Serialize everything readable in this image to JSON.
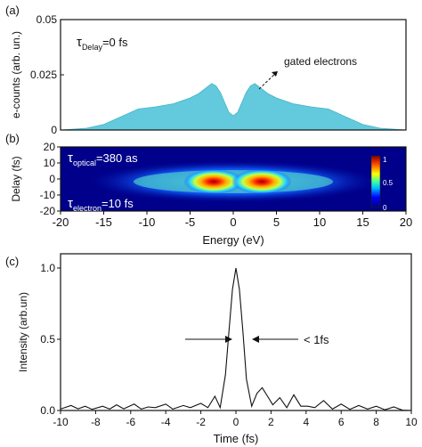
{
  "panel_labels": [
    "(a)",
    "(b)",
    "(c)"
  ],
  "colors": {
    "fill": "#63c9dc",
    "axis": "#111111"
  },
  "chart_data": [
    {
      "type": "area",
      "title": "",
      "xlabel": "",
      "ylabel": "e-counts (arb. un.)",
      "xlim": [
        -20,
        20
      ],
      "ylim": [
        0,
        0.05
      ],
      "y_ticks": [
        "0",
        "0.025",
        "0.05"
      ],
      "annotations": {
        "tau_symbol": "τ",
        "tau_sub": "Delay",
        "tau_value": "=0 fs",
        "gated": "gated electrons"
      },
      "x": [
        -20,
        -17,
        -15,
        -13,
        -11,
        -9,
        -7,
        -5,
        -4,
        -3,
        -2.5,
        -2,
        -1.5,
        -1,
        -0.5,
        0,
        0.5,
        1,
        1.5,
        2,
        2.5,
        3,
        4,
        5,
        7,
        9,
        11,
        13,
        15,
        17,
        20
      ],
      "y": [
        0,
        0.0008,
        0.0025,
        0.006,
        0.0095,
        0.0105,
        0.0118,
        0.0145,
        0.0165,
        0.0195,
        0.021,
        0.02,
        0.017,
        0.0125,
        0.008,
        0.0065,
        0.008,
        0.0125,
        0.017,
        0.02,
        0.021,
        0.0195,
        0.0165,
        0.0145,
        0.0118,
        0.0105,
        0.0095,
        0.006,
        0.0025,
        0.0008,
        0
      ]
    },
    {
      "type": "heatmap",
      "title": "",
      "xlabel": "Energy (eV)",
      "ylabel": "Delay (fs)",
      "xlim": [
        -20,
        20
      ],
      "ylim": [
        -20,
        20
      ],
      "x_ticks": [
        -20,
        -15,
        -10,
        -5,
        0,
        5,
        10,
        15,
        20
      ],
      "y_ticks": [
        -20,
        -10,
        0,
        10,
        20
      ],
      "colorbar": {
        "min": 0,
        "max": 1,
        "labels": [
          "1",
          "0.5",
          "0"
        ]
      },
      "annotations": {
        "opt_symbol": "τ",
        "opt_sub": "optical",
        "opt_value": "=380 as",
        "el_symbol": "τ",
        "el_sub": "electron",
        "el_value": "=10 fs"
      },
      "peaks_energy_eV": [
        -2.5,
        2.5
      ]
    },
    {
      "type": "line",
      "title": "",
      "xlabel": "Time (fs)",
      "ylabel": "Intensity (arb.un)",
      "xlim": [
        -10,
        10
      ],
      "ylim": [
        0,
        1.1
      ],
      "x_ticks": [
        -10,
        -8,
        -6,
        -4,
        -2,
        0,
        2,
        4,
        6,
        8,
        10
      ],
      "y_ticks": [
        "0.0",
        "0.5",
        "1.0"
      ],
      "annotations": {
        "width": "< 1fs"
      },
      "x": [
        -10,
        -9.4,
        -9,
        -8.6,
        -8.2,
        -7.6,
        -7.2,
        -6.8,
        -6.4,
        -5.8,
        -5.4,
        -5,
        -4.6,
        -4,
        -3.6,
        -3,
        -2.6,
        -2,
        -1.6,
        -1.2,
        -0.9,
        -0.6,
        -0.4,
        -0.2,
        0,
        0.2,
        0.4,
        0.6,
        0.9,
        1.2,
        1.5,
        1.8,
        2.1,
        2.5,
        2.9,
        3.3,
        3.7,
        4.1,
        4.5,
        5,
        5.5,
        6,
        6.5,
        7,
        7.5,
        8,
        8.5,
        9,
        9.5,
        10
      ],
      "y": [
        0.01,
        0.035,
        0.012,
        0.03,
        0.008,
        0.03,
        0.01,
        0.04,
        0.012,
        0.045,
        0.01,
        0.025,
        0.02,
        0.045,
        0.01,
        0.035,
        0.02,
        0.05,
        0.02,
        0.1,
        0.02,
        0.25,
        0.55,
        0.85,
        1.0,
        0.85,
        0.55,
        0.22,
        0.03,
        0.12,
        0.16,
        0.1,
        0.04,
        0.09,
        0.02,
        0.11,
        0.03,
        0.03,
        0.02,
        0.07,
        0.01,
        0.045,
        0.008,
        0.035,
        0.01,
        0.03,
        0.005,
        0.025,
        0.002,
        0.0
      ]
    }
  ]
}
